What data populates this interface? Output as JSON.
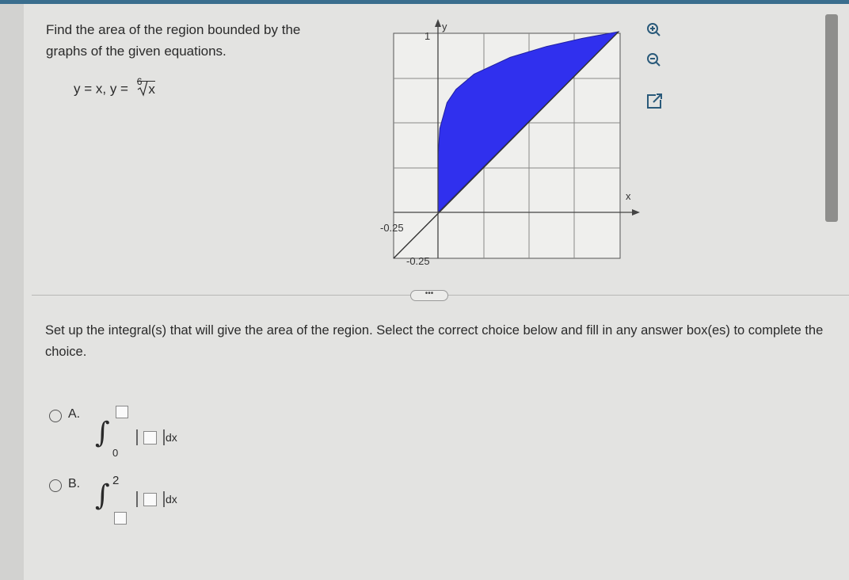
{
  "question": {
    "prompt": "Find the area of the region bounded by the graphs of the given equations.",
    "equation": {
      "prefix": "y = x, y =",
      "root_index": "6",
      "radicand": "x"
    }
  },
  "graph": {
    "y_axis": "y",
    "x_axis": "x",
    "y_tick": "1",
    "x_tick_neg": "-0.25",
    "y_tick_neg": "-0.25"
  },
  "instruction": "Set up the integral(s) that will give the area of the region. Select the correct choice below and fill in any answer box(es) to complete the choice.",
  "choices": [
    {
      "letter": "A.",
      "lower_limit": "0",
      "differential": "dx"
    },
    {
      "letter": "B.",
      "upper_limit": "2",
      "differential": "dx"
    }
  ]
}
